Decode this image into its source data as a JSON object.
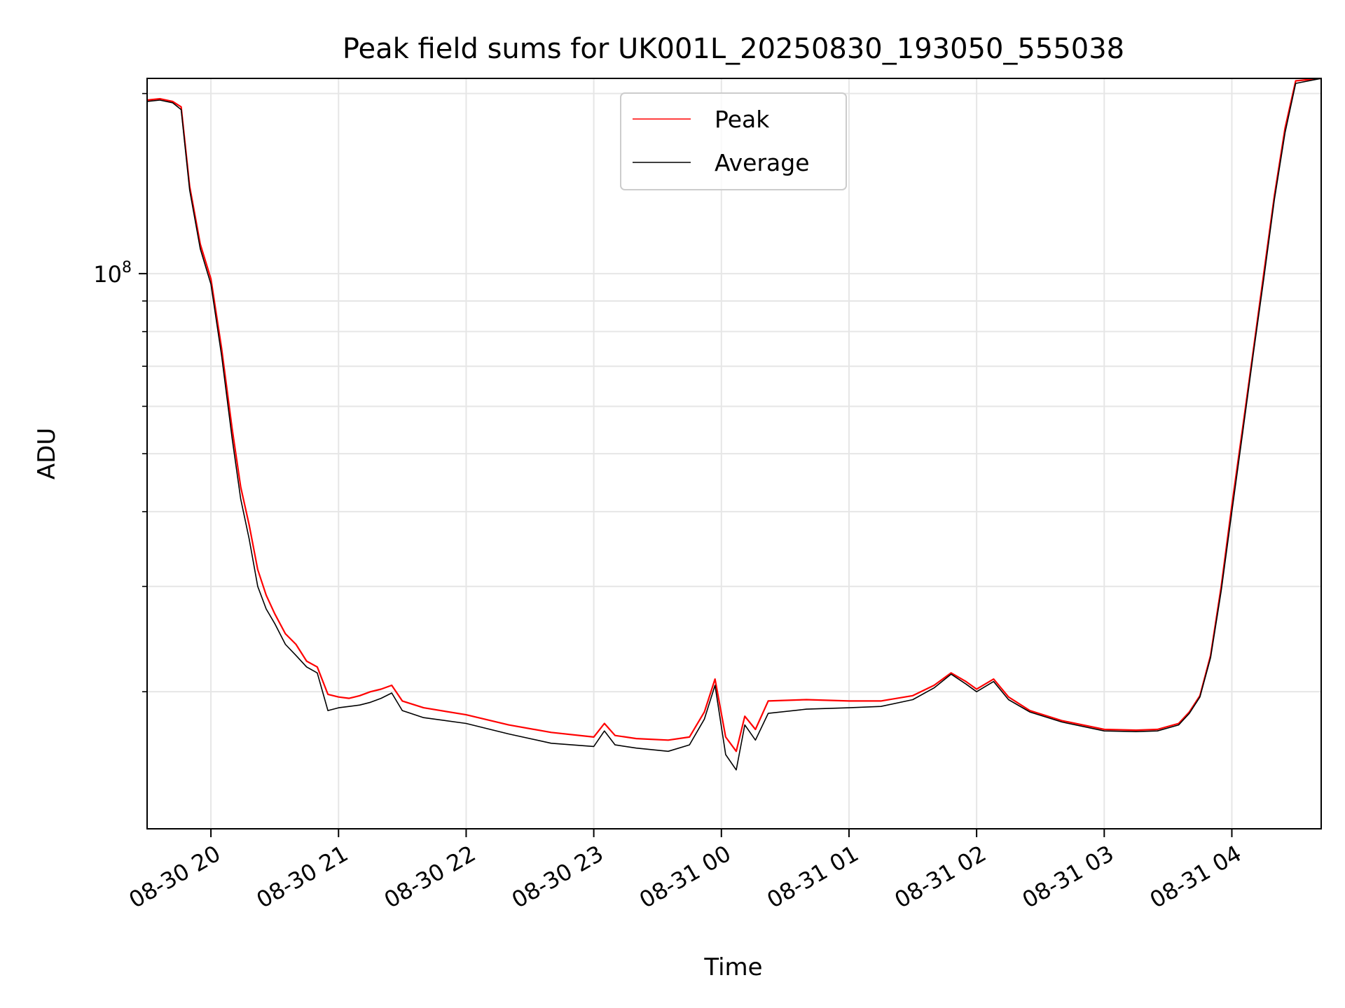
{
  "chart_data": {
    "type": "line",
    "title": "Peak field sums for UK001L_20250830_193050_555038",
    "xlabel": "Time",
    "ylabel": "ADU",
    "y_scale": "log",
    "ylim": [
      11800000,
      212000000
    ],
    "xlim": [
      "2025-08-30 19:30",
      "2025-08-31 04:42"
    ],
    "x_ticks": [
      {
        "t": "2025-08-30 20:00",
        "label": "08-30 20"
      },
      {
        "t": "2025-08-30 21:00",
        "label": "08-30 21"
      },
      {
        "t": "2025-08-30 22:00",
        "label": "08-30 22"
      },
      {
        "t": "2025-08-30 23:00",
        "label": "08-30 23"
      },
      {
        "t": "2025-08-31 00:00",
        "label": "08-31 00"
      },
      {
        "t": "2025-08-31 01:00",
        "label": "08-31 01"
      },
      {
        "t": "2025-08-31 02:00",
        "label": "08-31 02"
      },
      {
        "t": "2025-08-31 03:00",
        "label": "08-31 03"
      },
      {
        "t": "2025-08-31 04:00",
        "label": "08-31 04"
      }
    ],
    "y_major_ticks": [
      {
        "value": 100000000,
        "label": "10",
        "exponent": "8"
      }
    ],
    "y_minor_ticks": [
      20000000,
      30000000,
      40000000,
      50000000,
      60000000,
      70000000,
      80000000,
      90000000,
      200000000
    ],
    "grid": true,
    "legend_position": "upper-center",
    "series": [
      {
        "name": "Peak",
        "color": "#ff0000",
        "x": [
          "2025-08-30 19:30",
          "2025-08-30 19:36",
          "2025-08-30 19:42",
          "2025-08-30 19:46",
          "2025-08-30 19:50",
          "2025-08-30 19:55",
          "2025-08-30 20:00",
          "2025-08-30 20:05",
          "2025-08-30 20:10",
          "2025-08-30 20:14",
          "2025-08-30 20:18",
          "2025-08-30 20:22",
          "2025-08-30 20:26",
          "2025-08-30 20:30",
          "2025-08-30 20:35",
          "2025-08-30 20:40",
          "2025-08-30 20:45",
          "2025-08-30 20:50",
          "2025-08-30 20:55",
          "2025-08-30 21:00",
          "2025-08-30 21:05",
          "2025-08-30 21:10",
          "2025-08-30 21:15",
          "2025-08-30 21:20",
          "2025-08-30 21:25",
          "2025-08-30 21:30",
          "2025-08-30 21:40",
          "2025-08-30 22:00",
          "2025-08-30 22:20",
          "2025-08-30 22:40",
          "2025-08-30 23:00",
          "2025-08-30 23:05",
          "2025-08-30 23:10",
          "2025-08-30 23:20",
          "2025-08-30 23:35",
          "2025-08-30 23:45",
          "2025-08-30 23:52",
          "2025-08-30 23:57",
          "2025-08-31 00:02",
          "2025-08-31 00:07",
          "2025-08-31 00:11",
          "2025-08-31 00:16",
          "2025-08-31 00:22",
          "2025-08-31 00:40",
          "2025-08-31 01:00",
          "2025-08-31 01:15",
          "2025-08-31 01:30",
          "2025-08-31 01:40",
          "2025-08-31 01:48",
          "2025-08-31 01:55",
          "2025-08-31 02:00",
          "2025-08-31 02:08",
          "2025-08-31 02:15",
          "2025-08-31 02:25",
          "2025-08-31 02:40",
          "2025-08-31 03:00",
          "2025-08-31 03:15",
          "2025-08-31 03:25",
          "2025-08-31 03:35",
          "2025-08-31 03:40",
          "2025-08-31 03:45",
          "2025-08-31 03:50",
          "2025-08-31 03:55",
          "2025-08-31 04:00",
          "2025-08-31 04:05",
          "2025-08-31 04:10",
          "2025-08-31 04:15",
          "2025-08-31 04:20",
          "2025-08-31 04:25",
          "2025-08-31 04:30",
          "2025-08-31 04:42"
        ],
        "y": [
          195000000,
          196000000,
          194000000,
          190000000,
          140000000,
          112000000,
          98000000,
          75000000,
          55000000,
          44000000,
          38000000,
          32000000,
          29000000,
          27000000,
          25000000,
          24000000,
          22500000,
          22000000,
          19800000,
          19600000,
          19500000,
          19700000,
          20000000,
          20200000,
          20500000,
          19300000,
          18800000,
          18300000,
          17600000,
          17100000,
          16800000,
          17700000,
          16900000,
          16700000,
          16600000,
          16800000,
          18500000,
          21000000,
          16800000,
          15900000,
          18200000,
          17300000,
          19300000,
          19400000,
          19300000,
          19300000,
          19700000,
          20500000,
          21500000,
          20800000,
          20200000,
          21000000,
          19600000,
          18600000,
          17900000,
          17300000,
          17250000,
          17300000,
          17700000,
          18500000,
          19700000,
          23000000,
          30000000,
          41000000,
          55000000,
          74000000,
          100000000,
          135000000,
          175000000,
          210000000,
          212000000
        ]
      },
      {
        "name": "Average",
        "color": "#000000",
        "x": [
          "2025-08-30 19:30",
          "2025-08-30 19:36",
          "2025-08-30 19:42",
          "2025-08-30 19:46",
          "2025-08-30 19:50",
          "2025-08-30 19:55",
          "2025-08-30 20:00",
          "2025-08-30 20:05",
          "2025-08-30 20:10",
          "2025-08-30 20:14",
          "2025-08-30 20:18",
          "2025-08-30 20:22",
          "2025-08-30 20:26",
          "2025-08-30 20:30",
          "2025-08-30 20:35",
          "2025-08-30 20:40",
          "2025-08-30 20:45",
          "2025-08-30 20:50",
          "2025-08-30 20:55",
          "2025-08-30 21:00",
          "2025-08-30 21:05",
          "2025-08-30 21:10",
          "2025-08-30 21:15",
          "2025-08-30 21:20",
          "2025-08-30 21:25",
          "2025-08-30 21:30",
          "2025-08-30 21:40",
          "2025-08-30 22:00",
          "2025-08-30 22:20",
          "2025-08-30 22:40",
          "2025-08-30 23:00",
          "2025-08-30 23:05",
          "2025-08-30 23:10",
          "2025-08-30 23:20",
          "2025-08-30 23:35",
          "2025-08-30 23:45",
          "2025-08-30 23:52",
          "2025-08-30 23:57",
          "2025-08-31 00:02",
          "2025-08-31 00:07",
          "2025-08-31 00:11",
          "2025-08-31 00:16",
          "2025-08-31 00:22",
          "2025-08-31 00:40",
          "2025-08-31 01:00",
          "2025-08-31 01:15",
          "2025-08-31 01:30",
          "2025-08-31 01:40",
          "2025-08-31 01:48",
          "2025-08-31 01:55",
          "2025-08-31 02:00",
          "2025-08-31 02:08",
          "2025-08-31 02:15",
          "2025-08-31 02:25",
          "2025-08-31 02:40",
          "2025-08-31 03:00",
          "2025-08-31 03:15",
          "2025-08-31 03:25",
          "2025-08-31 03:35",
          "2025-08-31 03:40",
          "2025-08-31 03:45",
          "2025-08-31 03:50",
          "2025-08-31 03:55",
          "2025-08-31 04:00",
          "2025-08-31 04:05",
          "2025-08-31 04:10",
          "2025-08-31 04:15",
          "2025-08-31 04:20",
          "2025-08-31 04:25",
          "2025-08-31 04:30",
          "2025-08-31 04:42"
        ],
        "y": [
          194000000,
          195000000,
          193000000,
          188000000,
          138000000,
          110000000,
          96000000,
          73000000,
          53000000,
          42000000,
          36000000,
          30000000,
          27500000,
          26000000,
          24000000,
          23000000,
          22000000,
          21500000,
          18600000,
          18800000,
          18900000,
          19000000,
          19200000,
          19500000,
          19900000,
          18600000,
          18100000,
          17700000,
          17000000,
          16400000,
          16200000,
          17200000,
          16300000,
          16100000,
          15900000,
          16300000,
          18000000,
          20500000,
          15700000,
          14800000,
          17600000,
          16600000,
          18400000,
          18700000,
          18800000,
          18900000,
          19400000,
          20300000,
          21400000,
          20600000,
          20000000,
          20800000,
          19400000,
          18500000,
          17800000,
          17200000,
          17150000,
          17200000,
          17600000,
          18400000,
          19600000,
          22800000,
          29500000,
          40000000,
          54000000,
          73000000,
          98000000,
          133000000,
          172000000,
          208000000,
          212000000
        ]
      }
    ]
  }
}
